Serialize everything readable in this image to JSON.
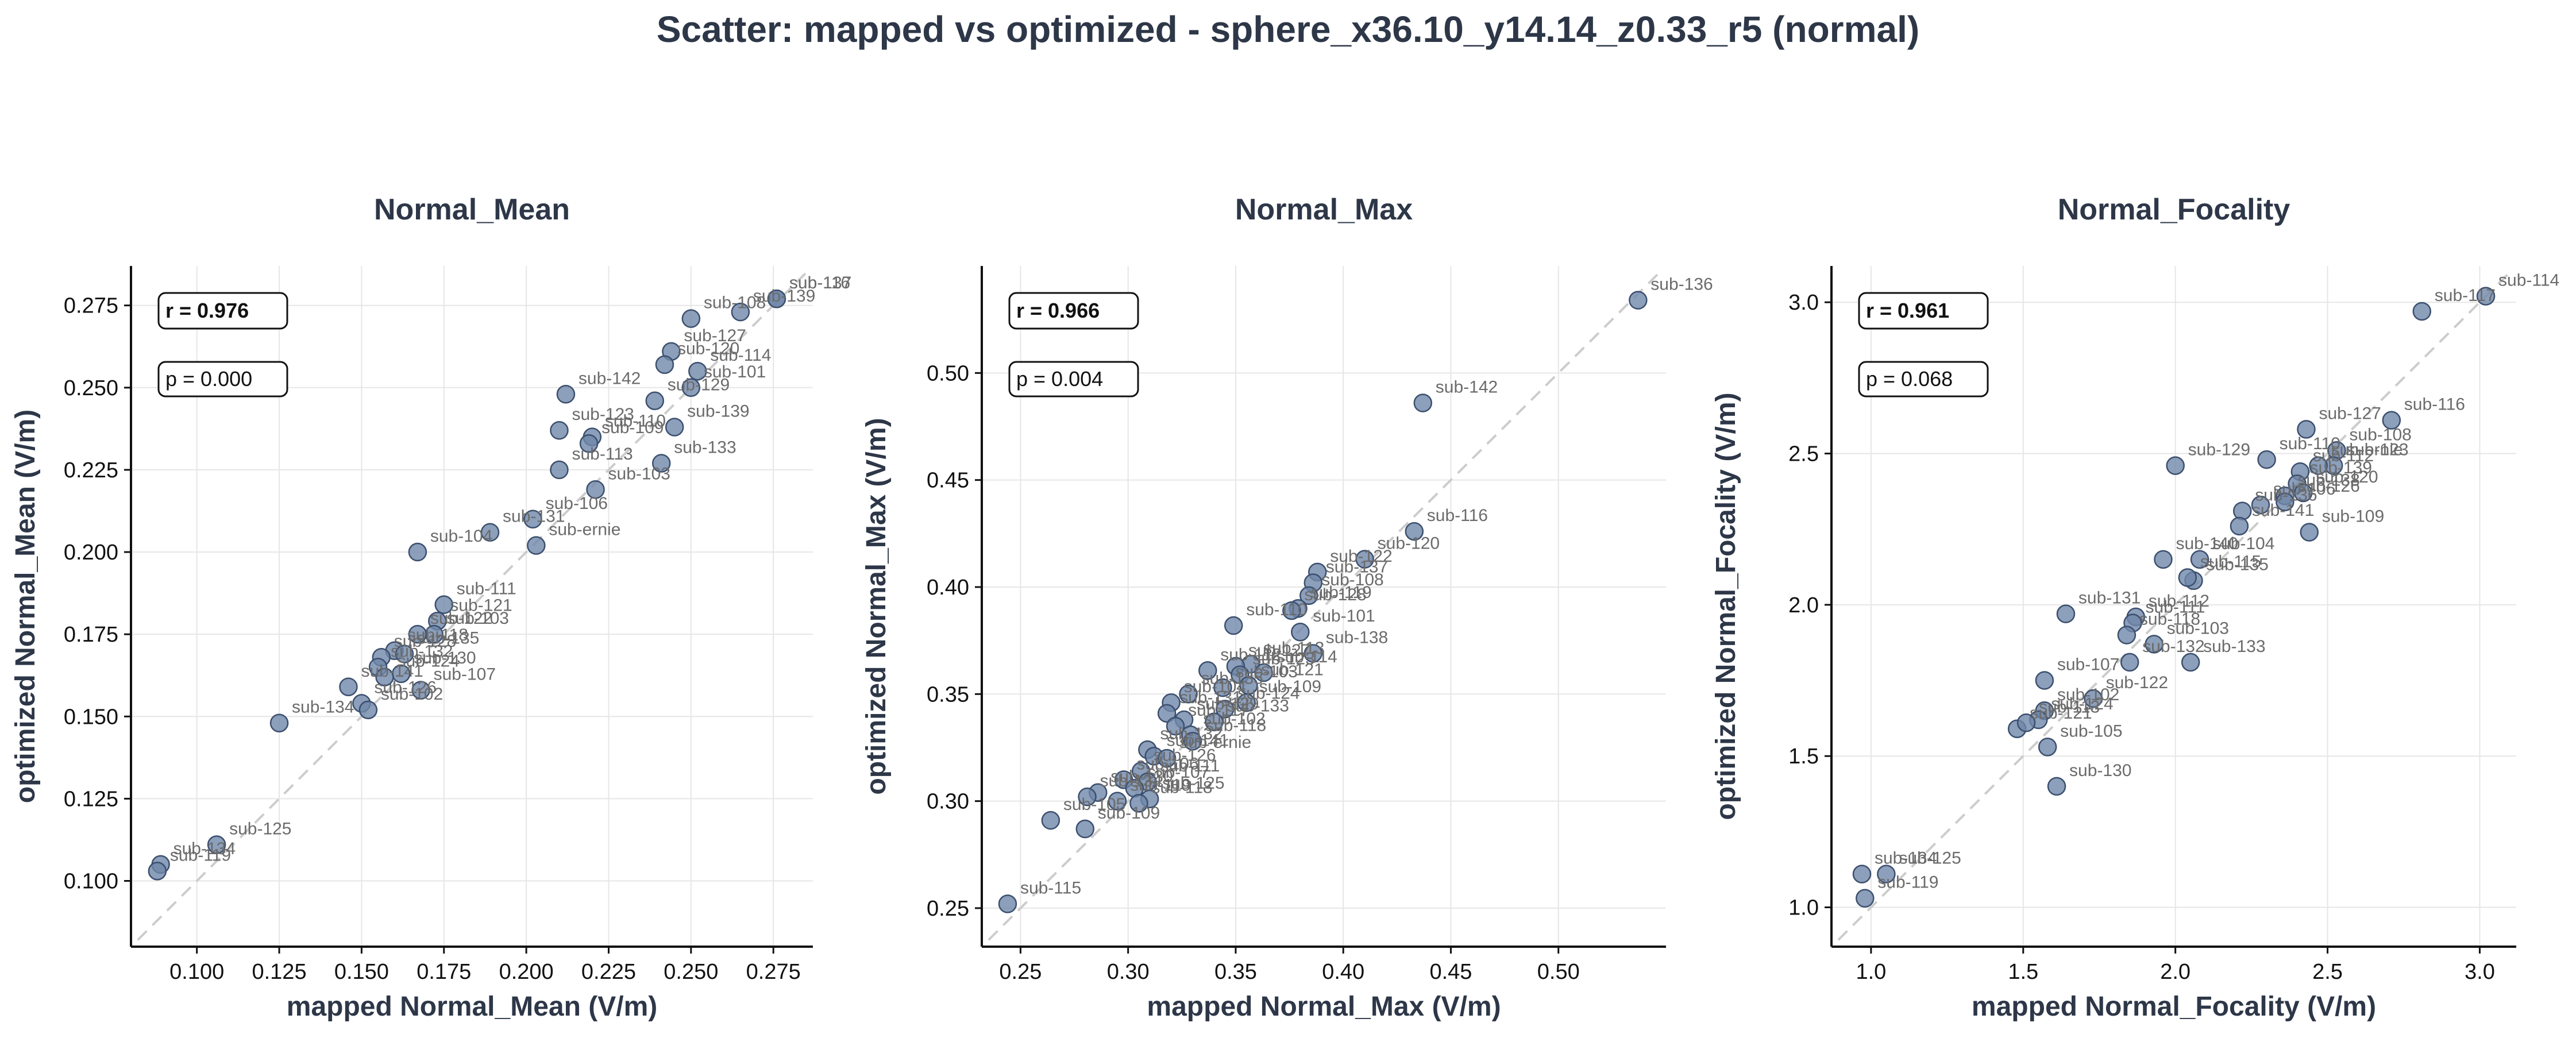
{
  "figure_title": "Scatter: mapped vs optimized - sphere_x36.10_y14.14_z0.33_r5 (normal)",
  "colors": {
    "point_fill": "#6f87aa",
    "point_stroke": "#3c4f6e",
    "identity_line": "#cccccc",
    "grid": "#e6e6e6",
    "text": "#2d3748"
  },
  "chart_data": [
    {
      "type": "scatter",
      "title": "Normal_Mean",
      "xlabel": "mapped Normal_Mean (V/m)",
      "ylabel": "optimized Normal_Mean (V/m)",
      "xlim": [
        0.08,
        0.287
      ],
      "ylim": [
        0.08,
        0.287
      ],
      "xticks": [
        0.1,
        0.125,
        0.15,
        0.175,
        0.2,
        0.225,
        0.25,
        0.275
      ],
      "yticks": [
        0.1,
        0.125,
        0.15,
        0.175,
        0.2,
        0.225,
        0.25,
        0.275
      ],
      "tick_decimals": 3,
      "r_text": "r = 0.976",
      "p_text": "p = 0.000",
      "grid": true,
      "identity_line": true,
      "points": [
        {
          "label": "sub-116",
          "x": 0.276,
          "y": 0.277
        },
        {
          "label": "sub-137",
          "x": 0.276,
          "y": 0.277
        },
        {
          "label": "sub-139",
          "x": 0.265,
          "y": 0.273
        },
        {
          "label": "sub-108",
          "x": 0.25,
          "y": 0.271
        },
        {
          "label": "sub-127",
          "x": 0.244,
          "y": 0.261
        },
        {
          "label": "sub-120",
          "x": 0.242,
          "y": 0.257
        },
        {
          "label": "sub-114",
          "x": 0.252,
          "y": 0.255
        },
        {
          "label": "sub-101",
          "x": 0.25,
          "y": 0.25
        },
        {
          "label": "sub-142",
          "x": 0.212,
          "y": 0.248
        },
        {
          "label": "sub-129",
          "x": 0.239,
          "y": 0.246
        },
        {
          "label": "sub-139",
          "x": 0.245,
          "y": 0.238
        },
        {
          "label": "sub-123",
          "x": 0.21,
          "y": 0.237
        },
        {
          "label": "sub-110",
          "x": 0.22,
          "y": 0.235
        },
        {
          "label": "sub-109",
          "x": 0.219,
          "y": 0.233
        },
        {
          "label": "sub-133",
          "x": 0.241,
          "y": 0.227
        },
        {
          "label": "sub-113",
          "x": 0.21,
          "y": 0.225
        },
        {
          "label": "sub-103",
          "x": 0.221,
          "y": 0.219
        },
        {
          "label": "sub-106",
          "x": 0.202,
          "y": 0.21
        },
        {
          "label": "sub-ernie",
          "x": 0.203,
          "y": 0.202
        },
        {
          "label": "sub-131",
          "x": 0.189,
          "y": 0.206
        },
        {
          "label": "sub-104",
          "x": 0.167,
          "y": 0.2
        },
        {
          "label": "sub-111",
          "x": 0.175,
          "y": 0.184
        },
        {
          "label": "sub-121",
          "x": 0.173,
          "y": 0.179
        },
        {
          "label": "sub-103",
          "x": 0.172,
          "y": 0.175
        },
        {
          "label": "sub-122",
          "x": 0.167,
          "y": 0.175
        },
        {
          "label": "sub-118",
          "x": 0.16,
          "y": 0.17
        },
        {
          "label": "sub-128",
          "x": 0.156,
          "y": 0.168
        },
        {
          "label": "sub-135",
          "x": 0.163,
          "y": 0.169
        },
        {
          "label": "sub-130",
          "x": 0.162,
          "y": 0.163
        },
        {
          "label": "sub-132",
          "x": 0.155,
          "y": 0.165
        },
        {
          "label": "sub-124",
          "x": 0.157,
          "y": 0.162
        },
        {
          "label": "sub-107",
          "x": 0.168,
          "y": 0.158
        },
        {
          "label": "sub-141",
          "x": 0.146,
          "y": 0.159
        },
        {
          "label": "sub-126",
          "x": 0.15,
          "y": 0.154
        },
        {
          "label": "sub-102",
          "x": 0.152,
          "y": 0.152
        },
        {
          "label": "sub-134",
          "x": 0.125,
          "y": 0.148
        },
        {
          "label": "sub-125",
          "x": 0.106,
          "y": 0.111
        },
        {
          "label": "sub-134",
          "x": 0.089,
          "y": 0.105
        },
        {
          "label": "sub-119",
          "x": 0.088,
          "y": 0.103
        }
      ]
    },
    {
      "type": "scatter",
      "title": "Normal_Max",
      "xlabel": "mapped Normal_Max (V/m)",
      "ylabel": "optimized Normal_Max (V/m)",
      "xlim": [
        0.232,
        0.55
      ],
      "ylim": [
        0.232,
        0.55
      ],
      "xticks": [
        0.25,
        0.3,
        0.35,
        0.4,
        0.45,
        0.5
      ],
      "yticks": [
        0.25,
        0.3,
        0.35,
        0.4,
        0.45,
        0.5
      ],
      "tick_decimals": 2,
      "r_text": "r = 0.966",
      "p_text": "p = 0.004",
      "grid": true,
      "identity_line": true,
      "points": [
        {
          "label": "sub-136",
          "x": 0.537,
          "y": 0.534
        },
        {
          "label": "sub-142",
          "x": 0.437,
          "y": 0.486
        },
        {
          "label": "sub-116",
          "x": 0.433,
          "y": 0.426
        },
        {
          "label": "sub-120",
          "x": 0.41,
          "y": 0.413
        },
        {
          "label": "sub-122",
          "x": 0.388,
          "y": 0.407
        },
        {
          "label": "sub-137",
          "x": 0.386,
          "y": 0.402
        },
        {
          "label": "sub-108",
          "x": 0.384,
          "y": 0.396
        },
        {
          "label": "sub-119",
          "x": 0.379,
          "y": 0.39
        },
        {
          "label": "sub-128",
          "x": 0.376,
          "y": 0.389
        },
        {
          "label": "sub-101",
          "x": 0.38,
          "y": 0.379
        },
        {
          "label": "sub-110",
          "x": 0.349,
          "y": 0.382
        },
        {
          "label": "sub-138",
          "x": 0.386,
          "y": 0.369
        },
        {
          "label": "sub-113",
          "x": 0.357,
          "y": 0.364
        },
        {
          "label": "sub-127",
          "x": 0.35,
          "y": 0.363
        },
        {
          "label": "sub-114",
          "x": 0.363,
          "y": 0.36
        },
        {
          "label": "sub-112",
          "x": 0.337,
          "y": 0.361
        },
        {
          "label": "sub-123",
          "x": 0.352,
          "y": 0.359
        },
        {
          "label": "sub-121",
          "x": 0.356,
          "y": 0.354
        },
        {
          "label": "sub-135",
          "x": 0.328,
          "y": 0.35
        },
        {
          "label": "sub-103",
          "x": 0.344,
          "y": 0.353
        },
        {
          "label": "sub-109",
          "x": 0.355,
          "y": 0.346
        },
        {
          "label": "sub-104",
          "x": 0.32,
          "y": 0.346
        },
        {
          "label": "sub-124",
          "x": 0.345,
          "y": 0.343
        },
        {
          "label": "sub-129",
          "x": 0.326,
          "y": 0.338
        },
        {
          "label": "sub-133",
          "x": 0.34,
          "y": 0.337
        },
        {
          "label": "sub-131",
          "x": 0.318,
          "y": 0.341
        },
        {
          "label": "sub-102",
          "x": 0.329,
          "y": 0.331
        },
        {
          "label": "sub-117",
          "x": 0.322,
          "y": 0.335
        },
        {
          "label": "sub-118",
          "x": 0.33,
          "y": 0.328
        },
        {
          "label": "sub-132",
          "x": 0.309,
          "y": 0.324
        },
        {
          "label": "sub-141",
          "x": 0.312,
          "y": 0.321
        },
        {
          "label": "sub-ernie",
          "x": 0.318,
          "y": 0.32
        },
        {
          "label": "sub-126",
          "x": 0.306,
          "y": 0.314
        },
        {
          "label": "sub-106",
          "x": 0.298,
          "y": 0.31
        },
        {
          "label": "sub-111",
          "x": 0.309,
          "y": 0.309
        },
        {
          "label": "sub-107",
          "x": 0.303,
          "y": 0.306
        },
        {
          "label": "sub-130",
          "x": 0.286,
          "y": 0.304
        },
        {
          "label": "sub-134",
          "x": 0.281,
          "y": 0.302
        },
        {
          "label": "sub-125",
          "x": 0.31,
          "y": 0.301
        },
        {
          "label": "sub-119",
          "x": 0.295,
          "y": 0.3
        },
        {
          "label": "sub-118",
          "x": 0.305,
          "y": 0.299
        },
        {
          "label": "sub-105",
          "x": 0.264,
          "y": 0.291
        },
        {
          "label": "sub-109",
          "x": 0.28,
          "y": 0.287
        },
        {
          "label": "sub-115",
          "x": 0.244,
          "y": 0.252
        }
      ]
    },
    {
      "type": "scatter",
      "title": "Normal_Focality",
      "xlabel": "mapped Normal_Focality (V/m)",
      "ylabel": "optimized Normal_Focality (V/m)",
      "xlim": [
        0.87,
        3.12
      ],
      "ylim": [
        0.87,
        3.12
      ],
      "xticks": [
        1.0,
        1.5,
        2.0,
        2.5,
        3.0
      ],
      "yticks": [
        1.0,
        1.5,
        2.0,
        2.5,
        3.0
      ],
      "tick_decimals": 1,
      "r_text": "r = 0.961",
      "p_text": "p = 0.068",
      "grid": true,
      "identity_line": true,
      "points": [
        {
          "label": "sub-114",
          "x": 3.02,
          "y": 3.02
        },
        {
          "label": "sub-117",
          "x": 2.81,
          "y": 2.97
        },
        {
          "label": "sub-116",
          "x": 2.71,
          "y": 2.61
        },
        {
          "label": "sub-127",
          "x": 2.43,
          "y": 2.58
        },
        {
          "label": "sub-108",
          "x": 2.53,
          "y": 2.51
        },
        {
          "label": "sub-129",
          "x": 2.0,
          "y": 2.46
        },
        {
          "label": "sub-110",
          "x": 2.3,
          "y": 2.48
        },
        {
          "label": "sub-123",
          "x": 2.52,
          "y": 2.46
        },
        {
          "label": "sub-ernie",
          "x": 2.47,
          "y": 2.46
        },
        {
          "label": "sub-112",
          "x": 2.41,
          "y": 2.44
        },
        {
          "label": "sub-139",
          "x": 2.4,
          "y": 2.4
        },
        {
          "label": "sub-120",
          "x": 2.42,
          "y": 2.37
        },
        {
          "label": "sub-138",
          "x": 2.36,
          "y": 2.36
        },
        {
          "label": "sub-126",
          "x": 2.36,
          "y": 2.34
        },
        {
          "label": "sub-106",
          "x": 2.28,
          "y": 2.33
        },
        {
          "label": "sub-109",
          "x": 2.44,
          "y": 2.24
        },
        {
          "label": "sub-136",
          "x": 2.22,
          "y": 2.31
        },
        {
          "label": "sub-141",
          "x": 2.21,
          "y": 2.26
        },
        {
          "label": "sub-104",
          "x": 2.08,
          "y": 2.15
        },
        {
          "label": "sub-140",
          "x": 1.96,
          "y": 2.15
        },
        {
          "label": "sub-135",
          "x": 2.06,
          "y": 2.08
        },
        {
          "label": "sub-115",
          "x": 2.04,
          "y": 2.09
        },
        {
          "label": "sub-112",
          "x": 1.87,
          "y": 1.96
        },
        {
          "label": "sub-111",
          "x": 1.86,
          "y": 1.94
        },
        {
          "label": "sub-131",
          "x": 1.64,
          "y": 1.97
        },
        {
          "label": "sub-118",
          "x": 1.84,
          "y": 1.9
        },
        {
          "label": "sub-103",
          "x": 1.93,
          "y": 1.87
        },
        {
          "label": "sub-133",
          "x": 2.05,
          "y": 1.81
        },
        {
          "label": "sub-132",
          "x": 1.85,
          "y": 1.81
        },
        {
          "label": "sub-107",
          "x": 1.57,
          "y": 1.75
        },
        {
          "label": "sub-122",
          "x": 1.73,
          "y": 1.69
        },
        {
          "label": "sub-102",
          "x": 1.57,
          "y": 1.65
        },
        {
          "label": "sub-124",
          "x": 1.55,
          "y": 1.62
        },
        {
          "label": "sub-121",
          "x": 1.48,
          "y": 1.59
        },
        {
          "label": "sub-113",
          "x": 1.51,
          "y": 1.61
        },
        {
          "label": "sub-105",
          "x": 1.58,
          "y": 1.53
        },
        {
          "label": "sub-130",
          "x": 1.61,
          "y": 1.4
        },
        {
          "label": "sub-134",
          "x": 0.97,
          "y": 1.11
        },
        {
          "label": "sub-125",
          "x": 1.05,
          "y": 1.11
        },
        {
          "label": "sub-119",
          "x": 0.98,
          "y": 1.03
        }
      ]
    }
  ]
}
